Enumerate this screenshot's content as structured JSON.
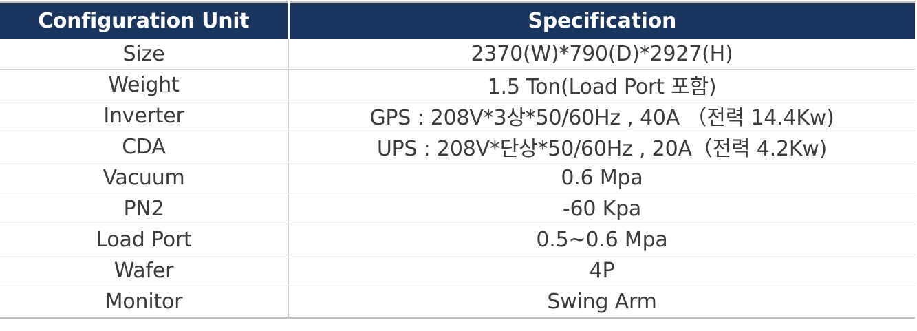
{
  "table": {
    "headers": [
      "Configuration Unit",
      "Specification"
    ],
    "rows": [
      {
        "unit": "Size",
        "spec": "2370(W)*790(D)*2927(H)"
      },
      {
        "unit": "Weight",
        "spec": "1.5 Ton(Load Port 포함)"
      },
      {
        "unit": "Inverter",
        "spec": "GPS : 208V*3상*50/60Hz , 40A （전력 14.4Kw)"
      },
      {
        "unit": "CDA",
        "spec": "UPS : 208V*단상*50/60Hz , 20A（전력 4.2Kw)"
      },
      {
        "unit": "Vacuum",
        "spec": "0.6 Mpa"
      },
      {
        "unit": "PN2",
        "spec": "-60 Kpa"
      },
      {
        "unit": "Load Port",
        "spec": "0.5~0.6 Mpa"
      },
      {
        "unit": "Wafer",
        "spec": "4P"
      },
      {
        "unit": "Monitor",
        "spec": "Swing Arm"
      }
    ]
  },
  "colors": {
    "header_bg": "#1a355e",
    "header_text": "#ffffff",
    "body_text": "#3b3b3b",
    "rule": "#bfbfbf"
  }
}
